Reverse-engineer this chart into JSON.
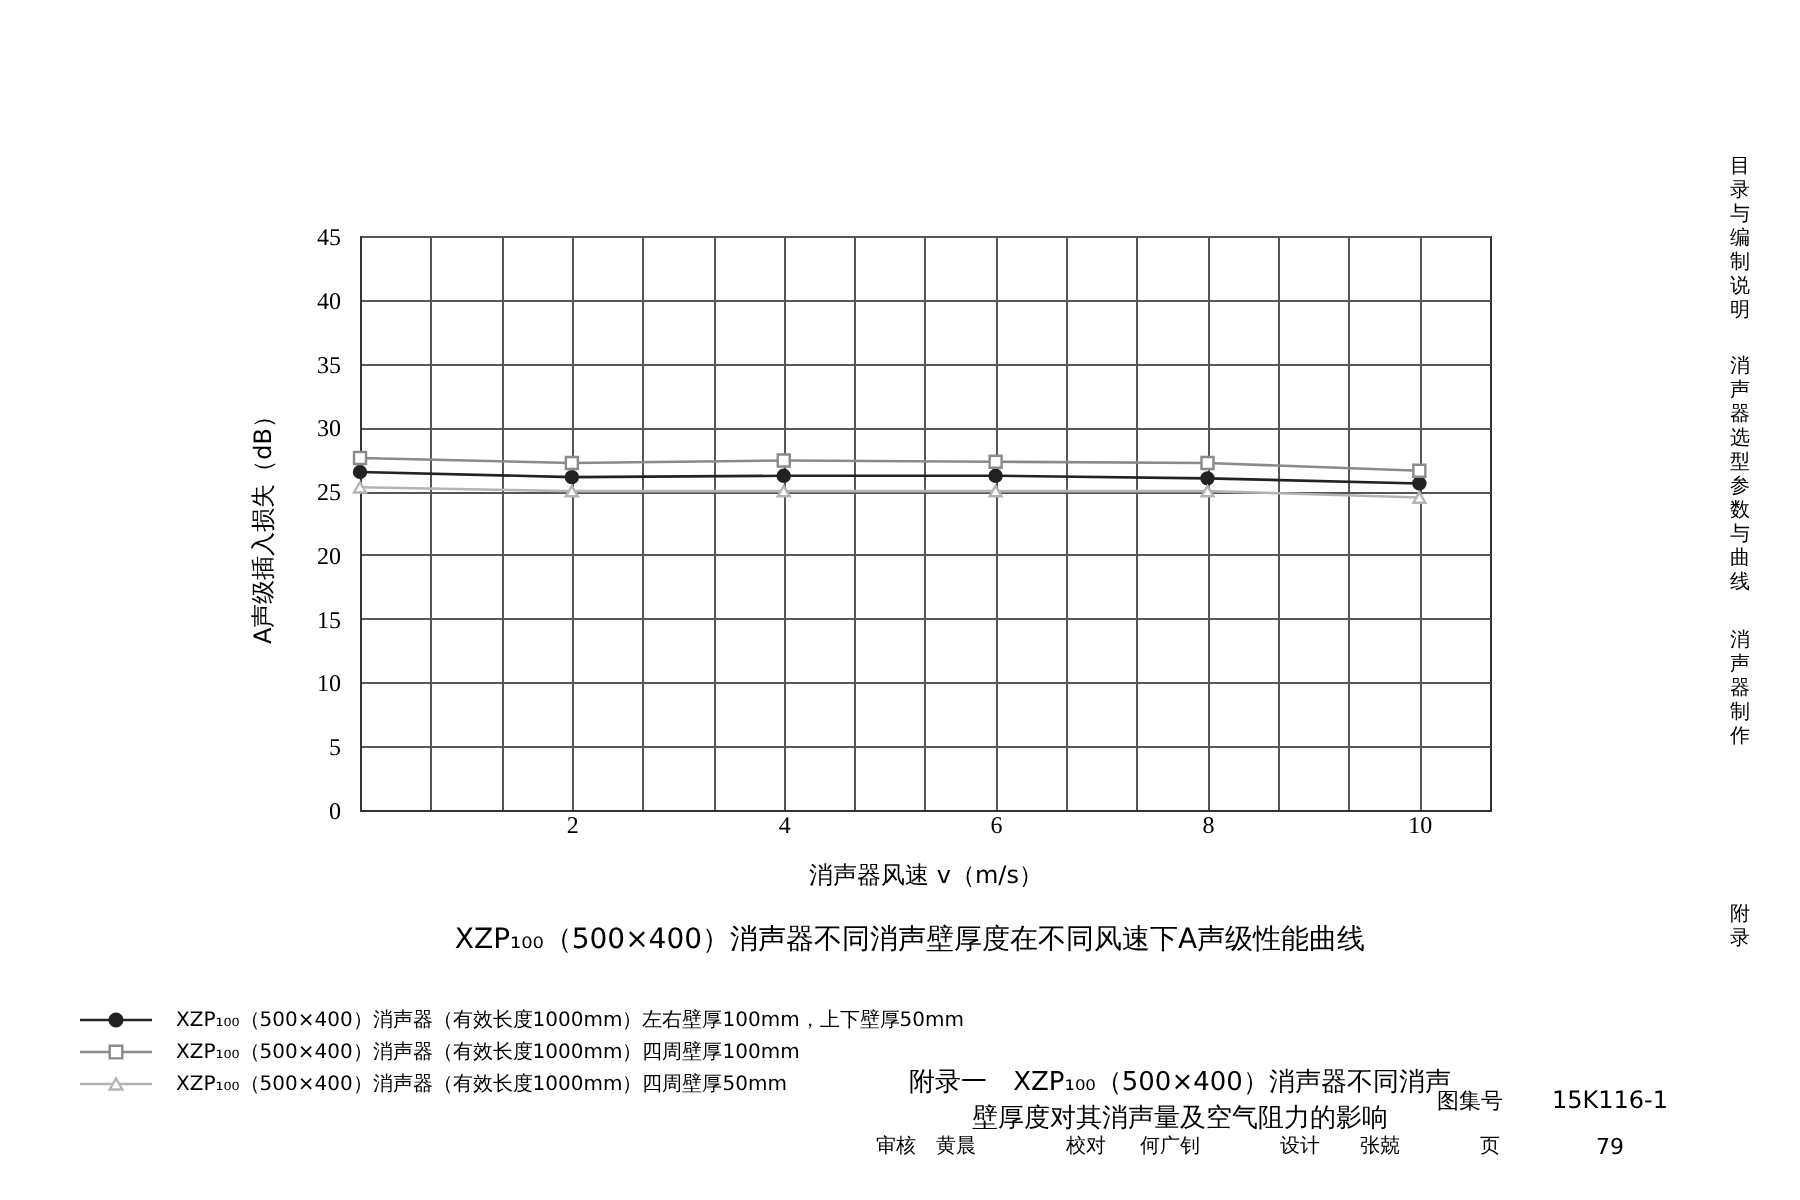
{
  "chart_data": {
    "type": "line",
    "title": "XZP₁₀₀（500×400）消声器不同消声壁厚度在不同风速下A声级性能曲线",
    "xlabel": "消声器风速 v（m/s）",
    "ylabel": "A声级插入损失（dB）",
    "x": [
      0,
      2,
      4,
      6,
      8,
      10
    ],
    "series": [
      {
        "name": "XZP₁₀₀（500×400）消声器（有效长度1000mm）左右壁厚100mm，上下壁厚50mm",
        "color": "#222222",
        "marker": "circle",
        "values": [
          26.5,
          26.1,
          26.2,
          26.2,
          26.0,
          25.6
        ]
      },
      {
        "name": "XZP₁₀₀（500×400）消声器（有效长度1000mm）四周壁厚100mm",
        "color": "#8a8a8a",
        "marker": "square",
        "values": [
          27.6,
          27.2,
          27.4,
          27.3,
          27.2,
          26.6
        ]
      },
      {
        "name": "XZP₁₀₀（500×400）消声器（有效长度1000mm）四周壁厚50mm",
        "color": "#b4b4b4",
        "marker": "triangle",
        "values": [
          25.3,
          25.0,
          25.0,
          25.0,
          25.0,
          24.5
        ]
      }
    ],
    "xlim": [
      0,
      10.667
    ],
    "xticks": [
      {
        "value": 0.667,
        "label": null
      },
      {
        "value": 1.333,
        "label": null
      },
      2,
      {
        "value": 2.667,
        "label": null
      },
      {
        "value": 3.333,
        "label": null
      },
      4,
      {
        "value": 4.667,
        "label": null
      },
      {
        "value": 5.333,
        "label": null
      },
      6,
      {
        "value": 6.667,
        "label": null
      },
      {
        "value": 7.333,
        "label": null
      },
      8,
      {
        "value": 8.667,
        "label": null
      },
      {
        "value": 9.333,
        "label": null
      },
      10
    ],
    "ylim": [
      0,
      45
    ],
    "yticks": [
      0,
      5,
      10,
      15,
      20,
      25,
      30,
      35,
      40,
      45
    ],
    "grid": true,
    "legend": "bottom left",
    "line_style": "solid",
    "annotations": [
      "附录一　XZP₁₀₀（500×400）消声器不同消声壁厚度对其消声量及空气阻力的影响",
      "图集号",
      "15K116-1",
      "审核",
      "黄晨",
      "校对",
      "何广钊",
      "设计",
      "张兢",
      "页",
      "79",
      "目录与编制说明",
      "消声器选型参数与曲线",
      "消声器制作",
      "附录"
    ]
  }
}
